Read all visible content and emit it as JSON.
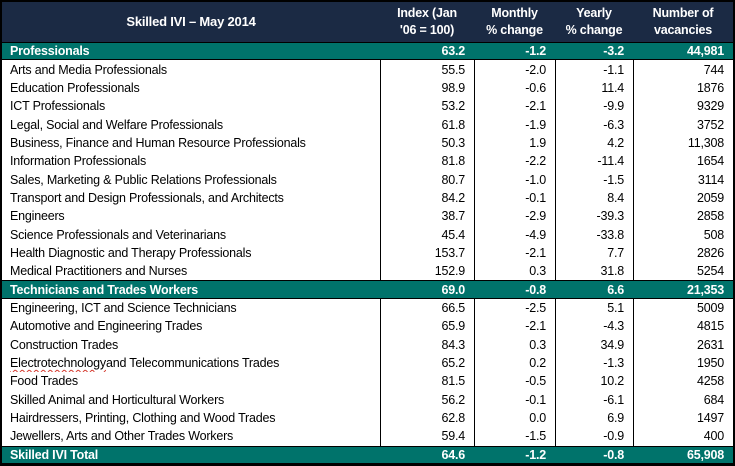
{
  "title": "Skilled IVI – May 2014",
  "columns": [
    {
      "line1": "Index (Jan",
      "line2": "'06 = 100)"
    },
    {
      "line1": "Monthly",
      "line2": "% change"
    },
    {
      "line1": "Yearly",
      "line2": "% change"
    },
    {
      "line1": "Number of",
      "line2": "vacancies"
    }
  ],
  "colors": {
    "header_bg": "#1B2A44",
    "group_bg": "#00736B",
    "border": "#000000",
    "squiggle": "#d43a2f",
    "text_light": "#ffffff",
    "text_dark": "#000000"
  },
  "rows": [
    {
      "type": "group",
      "label": "Professionals",
      "index": "63.2",
      "monthly": "-1.2",
      "yearly": "-3.2",
      "vacancies": "44,981"
    },
    {
      "type": "item",
      "label": "Arts and Media Professionals",
      "index": "55.5",
      "monthly": "-2.0",
      "yearly": "-1.1",
      "vacancies": "744"
    },
    {
      "type": "item",
      "label": "Education Professionals",
      "index": "98.9",
      "monthly": "-0.6",
      "yearly": "11.4",
      "vacancies": "1876"
    },
    {
      "type": "item",
      "label": "ICT Professionals",
      "index": "53.2",
      "monthly": "-2.1",
      "yearly": "-9.9",
      "vacancies": "9329"
    },
    {
      "type": "item",
      "label": "Legal, Social and Welfare Professionals",
      "index": "61.8",
      "monthly": "-1.9",
      "yearly": "-6.3",
      "vacancies": "3752"
    },
    {
      "type": "item",
      "label": "Business, Finance and Human Resource Professionals",
      "index": "50.3",
      "monthly": "1.9",
      "yearly": "4.2",
      "vacancies": "11,308"
    },
    {
      "type": "item",
      "label": "Information Professionals",
      "index": "81.8",
      "monthly": "-2.2",
      "yearly": "-11.4",
      "vacancies": "1654"
    },
    {
      "type": "item",
      "label": "Sales, Marketing & Public Relations Professionals",
      "index": "80.7",
      "monthly": "-1.0",
      "yearly": "-1.5",
      "vacancies": "3114"
    },
    {
      "type": "item",
      "label": "Transport and Design Professionals, and Architects",
      "index": "84.2",
      "monthly": "-0.1",
      "yearly": "8.4",
      "vacancies": "2059"
    },
    {
      "type": "item",
      "label": "Engineers",
      "index": "38.7",
      "monthly": "-2.9",
      "yearly": "-39.3",
      "vacancies": "2858"
    },
    {
      "type": "item",
      "label": "Science Professionals and Veterinarians",
      "index": "45.4",
      "monthly": "-4.9",
      "yearly": "-33.8",
      "vacancies": "508"
    },
    {
      "type": "item",
      "label": "Health Diagnostic and Therapy Professionals",
      "index": "153.7",
      "monthly": "-2.1",
      "yearly": "7.7",
      "vacancies": "2826"
    },
    {
      "type": "item",
      "label": "Medical Practitioners and Nurses",
      "index": "152.9",
      "monthly": "0.3",
      "yearly": "31.8",
      "vacancies": "5254"
    },
    {
      "type": "group",
      "label": "Technicians and Trades Workers",
      "index": "69.0",
      "monthly": "-0.8",
      "yearly": "6.6",
      "vacancies": "21,353"
    },
    {
      "type": "item",
      "label": "Engineering, ICT and Science Technicians",
      "index": "66.5",
      "monthly": "-2.5",
      "yearly": "5.1",
      "vacancies": "5009"
    },
    {
      "type": "item",
      "label": "Automotive and Engineering Trades",
      "index": "65.9",
      "monthly": "-2.1",
      "yearly": "-4.3",
      "vacancies": "4815"
    },
    {
      "type": "item",
      "label": "Construction Trades",
      "index": "84.3",
      "monthly": "0.3",
      "yearly": "34.9",
      "vacancies": "2631"
    },
    {
      "type": "item",
      "label": "Electrotechnology and Telecommunications Trades",
      "misspelled": "Electrotechnology",
      "index": "65.2",
      "monthly": "0.2",
      "yearly": "-1.3",
      "vacancies": "1950"
    },
    {
      "type": "item",
      "label": "Food Trades",
      "index": "81.5",
      "monthly": "-0.5",
      "yearly": "10.2",
      "vacancies": "4258"
    },
    {
      "type": "item",
      "label": "Skilled Animal and Horticultural Workers",
      "index": "56.2",
      "monthly": "-0.1",
      "yearly": "-6.1",
      "vacancies": "684"
    },
    {
      "type": "item",
      "label": "Hairdressers, Printing, Clothing and Wood Trades",
      "index": "62.8",
      "monthly": "0.0",
      "yearly": "6.9",
      "vacancies": "1497"
    },
    {
      "type": "item",
      "label": "Jewellers, Arts and Other Trades Workers",
      "index": "59.4",
      "monthly": "-1.5",
      "yearly": "-0.9",
      "vacancies": "400"
    },
    {
      "type": "group",
      "label": "Skilled IVI Total",
      "index": "64.6",
      "monthly": "-1.2",
      "yearly": "-0.8",
      "vacancies": "65,908"
    }
  ]
}
